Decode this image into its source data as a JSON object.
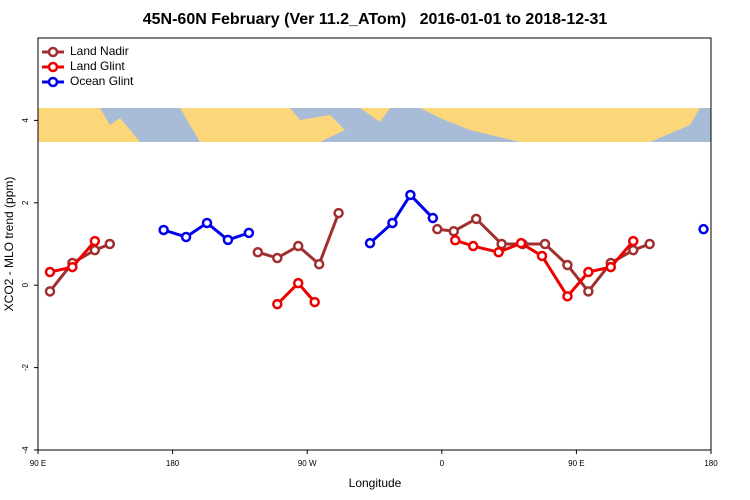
{
  "chart_data": {
    "type": "line",
    "title": "45N-60N February (Ver 11.2_ATom)   2016-01-01 to 2018-12-31",
    "xlabel": "Longitude",
    "ylabel": "XCO2 - MLO trend (ppm)",
    "xlim": [
      90,
      540
    ],
    "ylim": [
      -4,
      6
    ],
    "xticks": [
      {
        "value": 90,
        "label": "90 E"
      },
      180,
      {
        "value": 270,
        "label": "90 W"
      },
      {
        "value": 360,
        "label": "0"
      },
      {
        "value": 450,
        "label": "90 E"
      },
      {
        "value": 540,
        "label": "180"
      }
    ],
    "yticks": [
      -4,
      -2,
      0,
      2,
      4
    ],
    "legend": "top-left",
    "series": [
      {
        "name": "Land Nadir",
        "color": "#a03030",
        "x": [
          98,
          113,
          128,
          138,
          null,
          237,
          250,
          264,
          278,
          291,
          null,
          357,
          368,
          383,
          400,
          414,
          429,
          444,
          458,
          473,
          488,
          499
        ],
        "values": [
          -0.15,
          0.54,
          0.85,
          1.0,
          null,
          0.8,
          0.66,
          0.95,
          0.51,
          1.75,
          null,
          1.36,
          1.31,
          1.61,
          1.0,
          1.0,
          1.0,
          0.49,
          -0.15,
          0.54,
          0.85,
          1.0
        ]
      },
      {
        "name": "Land Glint",
        "color": "#ee0000",
        "x": [
          98,
          113,
          128,
          null,
          250,
          264,
          275,
          null,
          369,
          381,
          398,
          413,
          427,
          444,
          458,
          473,
          488
        ],
        "values": [
          0.32,
          0.44,
          1.07,
          null,
          -0.46,
          0.05,
          -0.41,
          null,
          1.09,
          0.95,
          0.8,
          1.02,
          0.71,
          -0.27,
          0.32,
          0.44,
          1.07
        ]
      },
      {
        "name": "Ocean Glint",
        "color": "#0000ee",
        "x": [
          174,
          189,
          203,
          217,
          231,
          null,
          312,
          327,
          339,
          354,
          null,
          535
        ],
        "values": [
          1.34,
          1.17,
          1.51,
          1.1,
          1.27,
          null,
          1.02,
          1.51,
          2.19,
          1.63,
          null,
          1.36
        ]
      }
    ]
  }
}
